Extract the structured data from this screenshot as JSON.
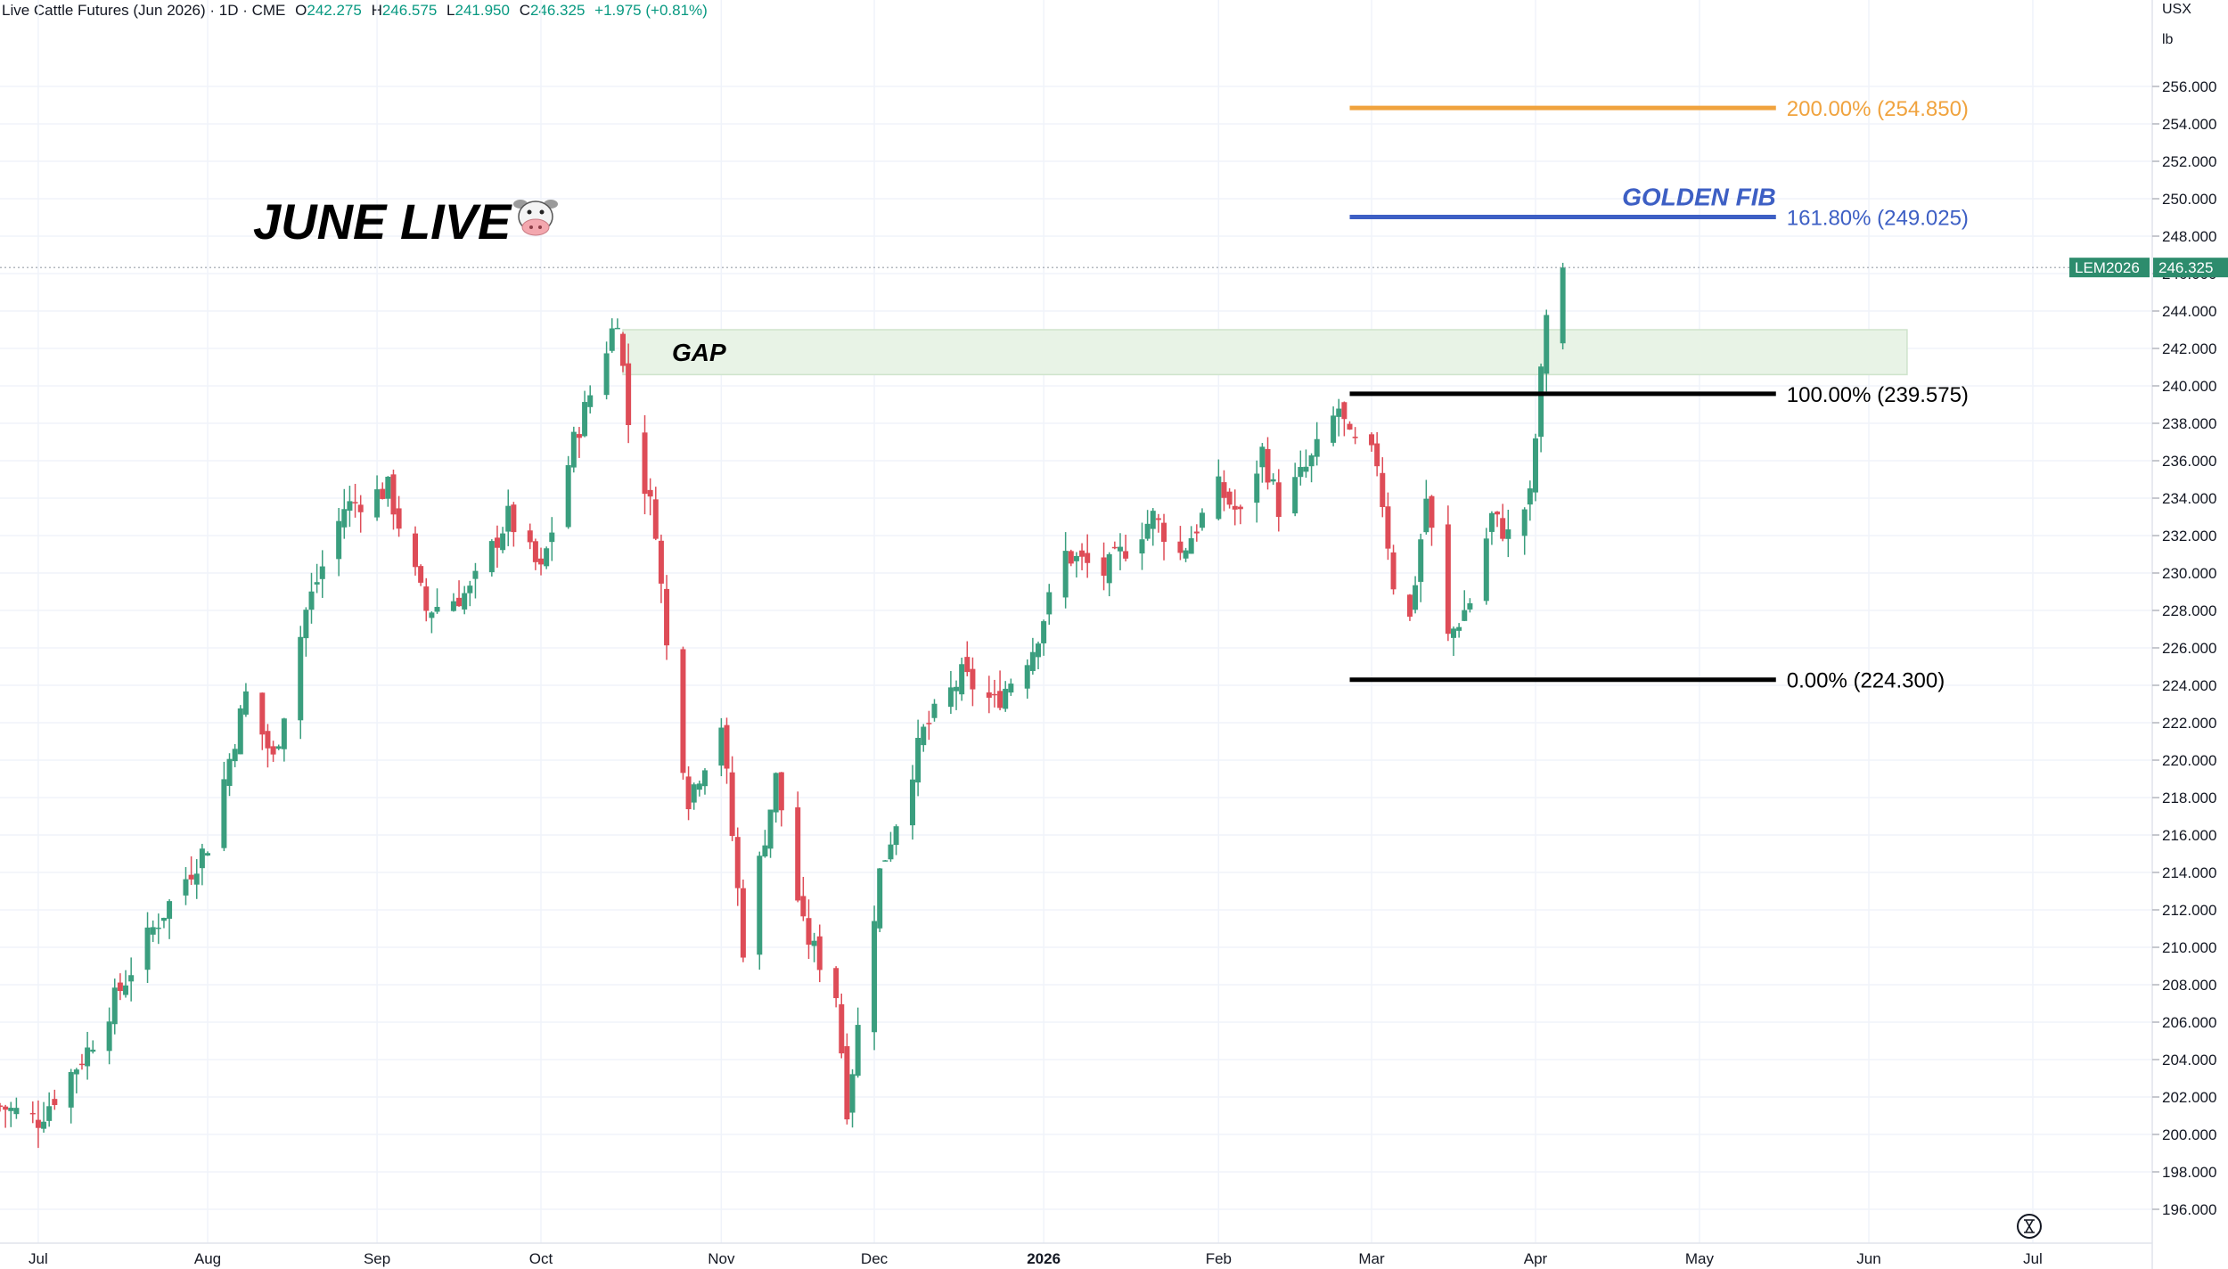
{
  "header": {
    "symbol": "Live Cattle Futures (Jun 2026) · 1D · CME",
    "open_label": "O",
    "open": "242.275",
    "high_label": "H",
    "high": "246.575",
    "low_label": "L",
    "low": "241.950",
    "close_label": "C",
    "close": "246.325",
    "change": "+1.975 (+0.81%)"
  },
  "units": {
    "currency": "USX",
    "per": "lb"
  },
  "price_tag": {
    "symbol": "LEM2026",
    "price": "246.325",
    "color": "#2d8c6d"
  },
  "colors": {
    "up": "#3a9e7e",
    "down": "#de4c57",
    "fib_200": "#f0a33e",
    "fib_1618": "#3d5fc4",
    "fib_base": "#000000",
    "gap_fill": "#e8f3e6"
  },
  "chart_data": {
    "type": "candlestick",
    "title": "JUNE LIVE",
    "title_icon": "cow-face-icon",
    "ylim": [
      195,
      258
    ],
    "yticks": [
      196,
      198,
      200,
      202,
      204,
      206,
      208,
      210,
      212,
      214,
      216,
      218,
      220,
      222,
      224,
      226,
      228,
      230,
      232,
      234,
      236,
      238,
      240,
      242,
      244,
      246,
      248,
      250,
      252,
      254,
      256
    ],
    "ytick_labels": [
      "196.000",
      "198.000",
      "200.000",
      "202.000",
      "204.000",
      "206.000",
      "208.000",
      "210.000",
      "212.000",
      "214.000",
      "216.000",
      "218.000",
      "220.000",
      "222.000",
      "224.000",
      "226.000",
      "228.000",
      "230.000",
      "232.000",
      "234.000",
      "236.000",
      "238.000",
      "240.000",
      "242.000",
      "244.000",
      "246.000",
      "248.000",
      "250.000",
      "252.000",
      "254.000",
      "256.000"
    ],
    "xrange": [
      "2025-06-24",
      "2026-07-09"
    ],
    "xticks": [
      {
        "date": "2025-07-01",
        "label": "Jul"
      },
      {
        "date": "2025-08-01",
        "label": "Aug"
      },
      {
        "date": "2025-09-01",
        "label": "Sep"
      },
      {
        "date": "2025-10-01",
        "label": "Oct"
      },
      {
        "date": "2025-11-03",
        "label": "Nov"
      },
      {
        "date": "2025-12-01",
        "label": "Dec"
      },
      {
        "date": "2026-01-01",
        "label": "2026",
        "bold": true
      },
      {
        "date": "2026-02-02",
        "label": "Feb"
      },
      {
        "date": "2026-03-02",
        "label": "Mar"
      },
      {
        "date": "2026-04-01",
        "label": "Apr"
      },
      {
        "date": "2026-05-01",
        "label": "May"
      },
      {
        "date": "2026-06-01",
        "label": "Jun"
      },
      {
        "date": "2026-07-01",
        "label": "Jul"
      }
    ],
    "anchors": [
      [
        "2025-06-24",
        201.5
      ],
      [
        "2025-07-01",
        200.8
      ],
      [
        "2025-07-10",
        204.5
      ],
      [
        "2025-07-22",
        211.0
      ],
      [
        "2025-08-01",
        215.5
      ],
      [
        "2025-08-08",
        223.5
      ],
      [
        "2025-08-13",
        220.0
      ],
      [
        "2025-08-19",
        228.0
      ],
      [
        "2025-08-26",
        233.5
      ],
      [
        "2025-09-03",
        234.5
      ],
      [
        "2025-09-10",
        228.0
      ],
      [
        "2025-09-18",
        229.0
      ],
      [
        "2025-09-25",
        233.0
      ],
      [
        "2025-10-01",
        230.0
      ],
      [
        "2025-10-07",
        237.0
      ],
      [
        "2025-10-15",
        243.8
      ],
      [
        "2025-10-17",
        238.0
      ],
      [
        "2025-10-22",
        232.5
      ],
      [
        "2025-10-24",
        226.0
      ],
      [
        "2025-10-28",
        218.0
      ],
      [
        "2025-11-03",
        222.0
      ],
      [
        "2025-11-07",
        210.0
      ],
      [
        "2025-11-13",
        219.0
      ],
      [
        "2025-11-18",
        211.0
      ],
      [
        "2025-11-24",
        207.5
      ],
      [
        "2025-11-26",
        201.5
      ],
      [
        "2025-12-02",
        214.0
      ],
      [
        "2025-12-10",
        221.5
      ],
      [
        "2025-12-17",
        224.5
      ],
      [
        "2025-12-23",
        223.0
      ],
      [
        "2025-12-30",
        226.0
      ],
      [
        "2026-01-05",
        231.0
      ],
      [
        "2026-01-12",
        230.0
      ],
      [
        "2026-01-21",
        233.0
      ],
      [
        "2026-01-26",
        231.0
      ],
      [
        "2026-02-02",
        234.5
      ],
      [
        "2026-02-06",
        233.0
      ],
      [
        "2026-02-10",
        236.5
      ],
      [
        "2026-02-13",
        233.5
      ],
      [
        "2026-02-19",
        236.0
      ],
      [
        "2026-02-24",
        238.8
      ],
      [
        "2026-02-26",
        237.0
      ],
      [
        "2026-03-03",
        236.0
      ],
      [
        "2026-03-06",
        229.5
      ],
      [
        "2026-03-09",
        227.5
      ],
      [
        "2026-03-12",
        234.0
      ],
      [
        "2026-03-16",
        226.5
      ],
      [
        "2026-03-20",
        228.5
      ],
      [
        "2026-03-24",
        233.0
      ],
      [
        "2026-03-27",
        232.0
      ],
      [
        "2026-03-31",
        234.0
      ],
      [
        "2026-04-02",
        240.5
      ],
      [
        "2026-04-03",
        244.0
      ],
      [
        "2026-04-06",
        246.325
      ]
    ],
    "annotations": {
      "gap": {
        "label": "GAP",
        "from_date": "2025-10-16",
        "to_date": "2026-06-08",
        "price_low": 240.6,
        "price_high": 243.0
      },
      "fib_levels": [
        {
          "label": "200.00% (254.850)",
          "price": 254.85,
          "color": "#f0a33e"
        },
        {
          "label": "161.80% (249.025)",
          "price": 249.025,
          "color": "#3d5fc4"
        },
        {
          "label": "100.00% (239.575)",
          "price": 239.575,
          "color": "#000000"
        },
        {
          "label": "0.00% (224.300)",
          "price": 224.3,
          "color": "#000000"
        }
      ],
      "fib_from_date": "2026-02-26",
      "fib_to_date": "2026-05-15",
      "golden_fib_label": "GOLDEN FIB"
    }
  }
}
